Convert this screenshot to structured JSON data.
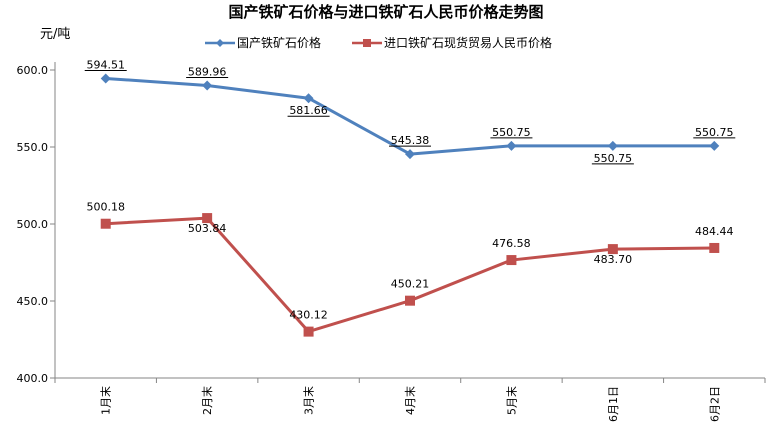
{
  "chart_data": {
    "type": "line",
    "title": "国产铁矿石价格与进口铁矿石人民币价格走势图",
    "ylabel": "元/吨",
    "categories": [
      "1月末",
      "2月末",
      "3月末",
      "4月末",
      "5月末",
      "6月1日",
      "6月2日"
    ],
    "ylim": [
      400,
      600
    ],
    "yticks": [
      "400.0",
      "450.0",
      "500.0",
      "550.0",
      "600.0"
    ],
    "grid": false,
    "legend_position": "top",
    "series": [
      {
        "name": "国产铁矿石价格",
        "color": "#4F81BD",
        "marker": "diamond",
        "values": [
          594.51,
          589.96,
          581.66,
          545.38,
          550.75,
          550.75,
          550.75
        ],
        "labels": [
          "594.51",
          "589.96",
          "581.66",
          "545.38",
          "550.75",
          "550.75",
          "550.75"
        ]
      },
      {
        "name": "进口铁矿石现货贸易人民币价格",
        "color": "#C0504D",
        "marker": "square",
        "values": [
          500.18,
          503.84,
          430.12,
          450.21,
          476.58,
          483.7,
          484.44
        ],
        "labels": [
          "500.18",
          "503.84",
          "430.12",
          "450.21",
          "476.58",
          "483.70",
          "484.44"
        ]
      }
    ]
  }
}
